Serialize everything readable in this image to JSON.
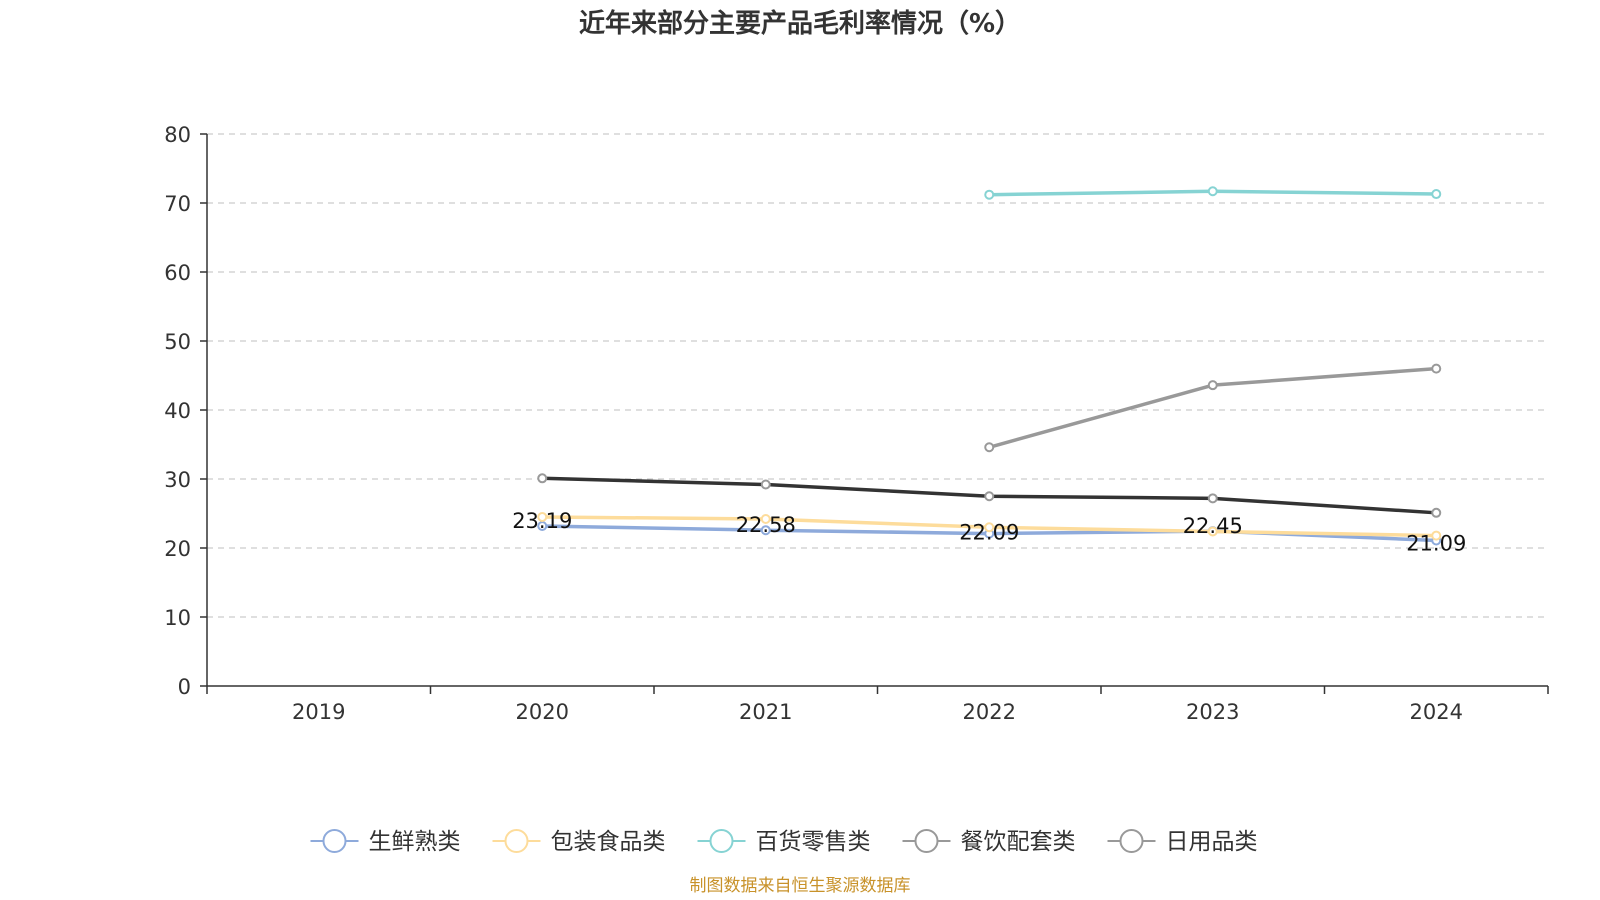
{
  "chart_data": {
    "type": "line",
    "title": "近年来部分主要产品毛利率情况（%）",
    "categories": [
      "2019",
      "2020",
      "2021",
      "2022",
      "2023",
      "2024"
    ],
    "ylim": [
      0,
      80
    ],
    "yticks": [
      0,
      10,
      20,
      30,
      40,
      50,
      60,
      70,
      80
    ],
    "grid": true,
    "legend_position": "bottom",
    "series": [
      {
        "name": "生鲜熟类",
        "color": "#8eaadb",
        "values": [
          null,
          23.19,
          22.58,
          22.09,
          22.45,
          21.09
        ],
        "labels": [
          "",
          "23.19",
          "22.58",
          "22.09",
          "22.45",
          "21.09"
        ]
      },
      {
        "name": "包装食品类",
        "color": "#fddc9b",
        "values": [
          null,
          24.5,
          24.2,
          23.0,
          22.4,
          21.8
        ]
      },
      {
        "name": "百货零售类",
        "color": "#86d3d3",
        "values": [
          null,
          null,
          null,
          71.2,
          71.7,
          71.3
        ]
      },
      {
        "name": "餐饮配套类",
        "color": "#999999",
        "values": [
          null,
          null,
          null,
          34.6,
          43.6,
          46.0
        ]
      },
      {
        "name": "日用品类",
        "color": "#333333",
        "legend_color": "#999999",
        "values": [
          null,
          30.1,
          29.2,
          27.5,
          27.2,
          25.1
        ]
      }
    ],
    "source": "制图数据来自恒生聚源数据库"
  }
}
